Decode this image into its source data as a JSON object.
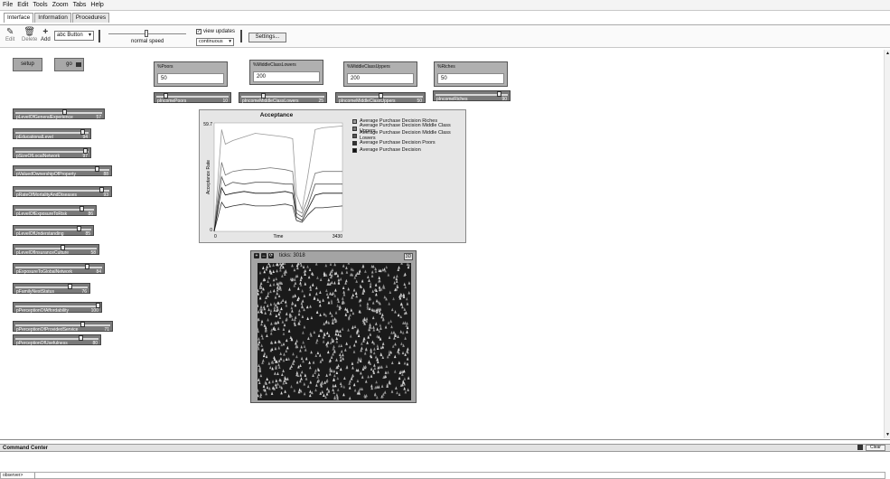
{
  "menu": [
    "File",
    "Edit",
    "Tools",
    "Zoom",
    "Tabs",
    "Help"
  ],
  "tabs": [
    {
      "label": "Interface",
      "active": true
    },
    {
      "label": "Information",
      "active": false
    },
    {
      "label": "Procedures",
      "active": false
    }
  ],
  "toolbar": {
    "edit_label": "Edit",
    "delete_label": "Delete",
    "add_label": "Add",
    "widget_select": "abc Button",
    "speed_label": "normal speed",
    "view_updates_label": "view updates",
    "view_updates_checked": true,
    "update_mode": "continuous",
    "settings_label": "Settings..."
  },
  "buttons": {
    "setup": "setup",
    "go": "go"
  },
  "monitors": [
    {
      "label": "%Poors",
      "value": "50"
    },
    {
      "label": "%MiddleClassLowers",
      "value": "200"
    },
    {
      "label": "%MiddleClassUppers",
      "value": "200"
    },
    {
      "label": "%Riches",
      "value": "50"
    }
  ],
  "income_sliders": [
    {
      "label": "pIncomePoors",
      "value": "10",
      "fraction": 0.1
    },
    {
      "label": "pIncomeMiddleClassLowers",
      "value": "25",
      "fraction": 0.25
    },
    {
      "label": "pIncomeMiddleClassUppers",
      "value": "50",
      "fraction": 0.5
    },
    {
      "label": "pIncomeRiches",
      "value": "90",
      "fraction": 0.9
    }
  ],
  "left_sliders": [
    {
      "label": "pLevelOfGeneralExperience",
      "value": "57",
      "fraction": 0.57
    },
    {
      "label": "pEducationalLevel",
      "value": "94",
      "fraction": 0.94
    },
    {
      "label": "pSizeOfLocalNetwork",
      "value": "97",
      "fraction": 0.97
    },
    {
      "label": "pValuedOwnershipOfProperty",
      "value": "88",
      "fraction": 0.88
    },
    {
      "label": "pRateOfMortalityAndDiseases",
      "value": "93",
      "fraction": 0.93
    },
    {
      "label": "pLevelOfExposureToRisk",
      "value": "86",
      "fraction": 0.86
    },
    {
      "label": "pLevelOfUnderstanding",
      "value": "85",
      "fraction": 0.85
    },
    {
      "label": "pLevelOfInsuranceCulture",
      "value": "58",
      "fraction": 0.58
    },
    {
      "label": "pExposureToGlobalNetwork",
      "value": "84",
      "fraction": 0.84
    },
    {
      "label": "pFamilyNestStatus",
      "value": "76",
      "fraction": 0.76
    },
    {
      "label": "pPerceptionOfAffordability",
      "value": "100",
      "fraction": 1.0
    },
    {
      "label": "pPerceptionOfProvidedService",
      "value": "71",
      "fraction": 0.71
    },
    {
      "label": "pPerceptionOfUsefulness",
      "value": "80",
      "fraction": 0.8
    }
  ],
  "view": {
    "ticks_label": "ticks: 3018",
    "three_d": "3D"
  },
  "command_center": {
    "title": "Command Center",
    "clear_label": "Clear",
    "agent": "observer>"
  },
  "colors": {
    "riches": "#9a9a9a",
    "middle_uppers": "#777777",
    "middle_lowers": "#555555",
    "poors": "#333333",
    "average": "#111111"
  },
  "chart_data": {
    "type": "line",
    "title": "Acceptance",
    "xlabel": "Time",
    "ylabel": "Acceptance Rate",
    "x_ticks": [
      "0",
      "3430"
    ],
    "y_ticks": [
      "0",
      "59.7"
    ],
    "xlim": [
      0,
      3430
    ],
    "ylim": [
      0,
      59.7
    ],
    "x": [
      0,
      200,
      300,
      500,
      800,
      1100,
      1500,
      1900,
      2100,
      2200,
      2350,
      2500,
      2700,
      2900,
      3430
    ],
    "series": [
      {
        "name": "Average Purchase Decision Riches",
        "color": "#9a9a9a",
        "values": [
          0,
          56,
          48,
          50,
          52,
          54,
          53,
          52,
          51,
          20,
          12,
          30,
          56,
          57,
          58
        ]
      },
      {
        "name": "Average Purchase Decision Middle Class Uppers",
        "color": "#777777",
        "values": [
          0,
          38,
          31,
          33,
          34,
          34,
          35,
          34,
          33,
          12,
          10,
          18,
          32,
          33,
          33
        ]
      },
      {
        "name": "Average Purchase Decision Middle Class Lowers",
        "color": "#555555",
        "values": [
          0,
          30,
          25,
          27,
          26,
          27,
          27,
          26,
          26,
          10,
          8,
          14,
          26,
          26,
          26
        ]
      },
      {
        "name": "Average Purchase Decision Poors",
        "color": "#333333",
        "values": [
          0,
          16,
          13,
          14,
          15,
          14,
          14,
          15,
          14,
          6,
          5,
          9,
          13,
          13,
          14
        ]
      },
      {
        "name": "Average Purchase Decision",
        "color": "#111111",
        "values": [
          0,
          24,
          20,
          21,
          22,
          21,
          21,
          22,
          21,
          8,
          6,
          12,
          20,
          21,
          21
        ]
      }
    ]
  }
}
